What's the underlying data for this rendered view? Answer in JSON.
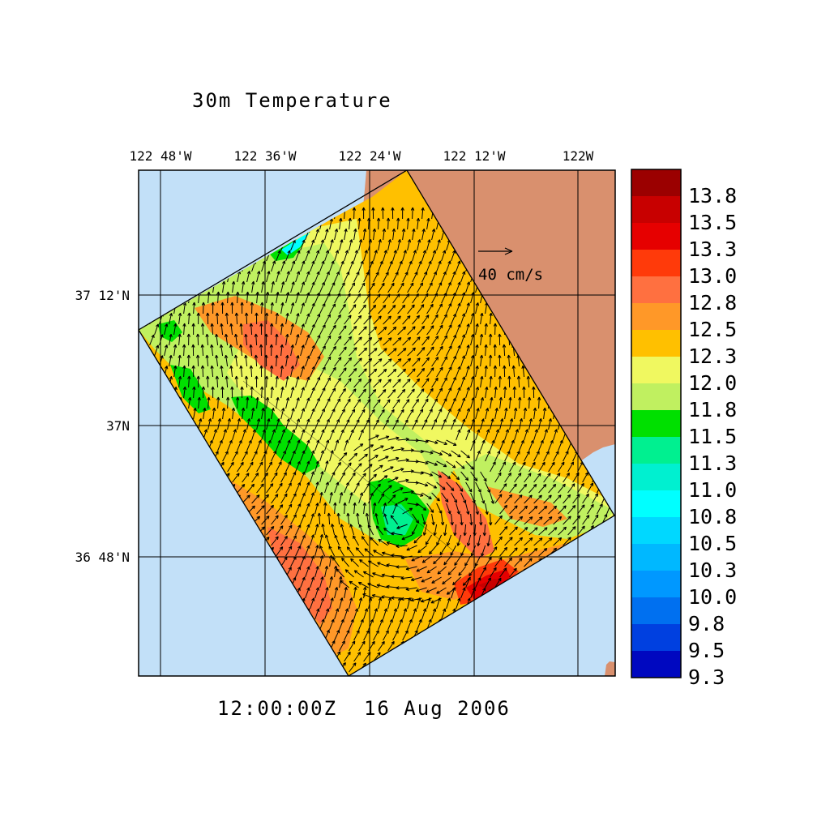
{
  "title": "30m Temperature",
  "timestamp": "12:00:00Z  16 Aug 2006",
  "lon_labels": [
    "122 48'W",
    "122 36'W",
    "122 24'W",
    "122 12'W",
    "122W"
  ],
  "lat_labels": [
    "37 12'N",
    "37N",
    "36 48'N"
  ],
  "vector_scale_label": "40 cm/s",
  "colorbar": {
    "labels": [
      "13.8",
      "13.5",
      "13.3",
      "13.0",
      "12.8",
      "12.5",
      "12.3",
      "12.0",
      "11.8",
      "11.5",
      "11.3",
      "11.0",
      "10.8",
      "10.5",
      "10.3",
      "10.0",
      "9.8",
      "9.5",
      "9.3"
    ],
    "colors": [
      "#9b0000",
      "#c80000",
      "#e60000",
      "#ff3a0a",
      "#ff7040",
      "#ff9828",
      "#ffc000",
      "#f0f860",
      "#c0f060",
      "#00e000",
      "#00f090",
      "#00f0d0",
      "#00ffff",
      "#00d8ff",
      "#00b8ff",
      "#0098ff",
      "#0070f0",
      "#0040e0",
      "#0008c0"
    ]
  },
  "colors": {
    "ocean": "#c2e0f8",
    "land": "#d9906e"
  }
}
